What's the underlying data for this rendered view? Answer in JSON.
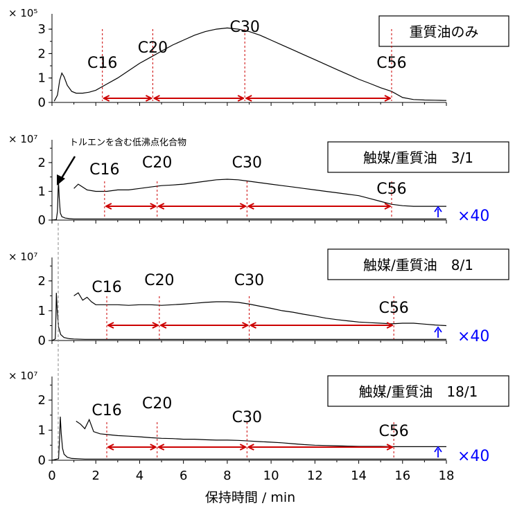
{
  "figure": {
    "xlabel": "保持時間 / min",
    "x_ticks": [
      0,
      2,
      4,
      6,
      8,
      10,
      12,
      14,
      16,
      18
    ],
    "xlim": [
      0,
      18
    ],
    "annotation_arrow_label": "トルエンを含む低沸点化合物",
    "colors": {
      "trace": "#000000",
      "marker": "#cc0000",
      "scale_label": "#0000ff",
      "axis": "#000000"
    },
    "icons": {
      "arrow": "black-arrow-icon",
      "scale": "blue-up-arrow-icon"
    }
  },
  "chart_data": [
    {
      "type": "line",
      "label": "重質油のみ",
      "exponent_label": "× 10⁵",
      "y_ticks": [
        0,
        1,
        2,
        3
      ],
      "ylim": [
        0,
        3.4
      ],
      "scale_label": "",
      "markers": [
        {
          "label": "C16",
          "x": 2.3
        },
        {
          "label": "C20",
          "x": 4.6
        },
        {
          "label": "C30",
          "x": 8.8
        },
        {
          "label": "C56",
          "x": 15.5
        }
      ],
      "series": [
        {
          "x": [
            0.1,
            0.25,
            0.35,
            0.45,
            0.55,
            0.7,
            0.9,
            1.1,
            1.4,
            1.7,
            2.0,
            2.5,
            3.0,
            3.5,
            4.0,
            4.5,
            5.0,
            5.5,
            6.0,
            6.5,
            7.0,
            7.5,
            8.0,
            8.5,
            9.0,
            9.5,
            10,
            10.5,
            11,
            11.5,
            12,
            12.5,
            13,
            13.5,
            14,
            14.5,
            15,
            15.5,
            16,
            16.5,
            17,
            17.5,
            18
          ],
          "y": [
            0.05,
            0.3,
            0.9,
            1.2,
            1.05,
            0.7,
            0.45,
            0.38,
            0.38,
            0.42,
            0.5,
            0.75,
            1.0,
            1.3,
            1.6,
            1.85,
            2.1,
            2.35,
            2.55,
            2.75,
            2.9,
            3.0,
            3.05,
            3.0,
            2.9,
            2.75,
            2.55,
            2.35,
            2.15,
            1.95,
            1.75,
            1.55,
            1.35,
            1.15,
            0.95,
            0.78,
            0.6,
            0.45,
            0.2,
            0.12,
            0.1,
            0.09,
            0.08
          ]
        }
      ]
    },
    {
      "type": "line",
      "label": "触媒/重質油　3/1",
      "exponent_label": "× 10⁷",
      "y_ticks": [
        0,
        1,
        2
      ],
      "ylim": [
        0,
        2.6
      ],
      "scale_label": "×40",
      "markers": [
        {
          "label": "C16",
          "x": 2.4
        },
        {
          "label": "C20",
          "x": 4.8
        },
        {
          "label": "C30",
          "x": 8.9
        },
        {
          "label": "C56",
          "x": 15.5
        }
      ],
      "series": [
        {
          "name": "×1",
          "x": [
            0,
            0.2,
            0.25,
            0.28,
            0.3,
            0.33,
            0.38,
            0.45,
            0.6,
            0.8,
            1.0,
            1.5,
            2,
            4,
            6,
            8,
            10,
            12,
            14,
            16,
            18
          ],
          "y": [
            0,
            0.02,
            0.3,
            1.1,
            1.3,
            0.8,
            0.25,
            0.12,
            0.07,
            0.05,
            0.04,
            0.04,
            0.04,
            0.04,
            0.04,
            0.04,
            0.04,
            0.04,
            0.04,
            0.04,
            0.04
          ]
        },
        {
          "name": "×40",
          "x": [
            1.0,
            1.2,
            1.6,
            2.0,
            2.5,
            3,
            3.5,
            4,
            4.5,
            5,
            5.5,
            6,
            6.5,
            7,
            7.5,
            8,
            8.5,
            9,
            9.5,
            10,
            10.5,
            11,
            11.5,
            12,
            12.5,
            13,
            13.5,
            14,
            14.5,
            15,
            15.5,
            16,
            16.5,
            17,
            17.5,
            18
          ],
          "y": [
            1.1,
            1.25,
            1.05,
            1.0,
            1.0,
            1.05,
            1.05,
            1.1,
            1.15,
            1.2,
            1.22,
            1.25,
            1.3,
            1.35,
            1.4,
            1.42,
            1.4,
            1.35,
            1.3,
            1.25,
            1.2,
            1.15,
            1.1,
            1.05,
            1.0,
            0.95,
            0.9,
            0.85,
            0.75,
            0.65,
            0.55,
            0.5,
            0.48,
            0.48,
            0.48,
            0.48
          ]
        }
      ]
    },
    {
      "type": "line",
      "label": "触媒/重質油　8/1",
      "exponent_label": "× 10⁷",
      "y_ticks": [
        0,
        1,
        2
      ],
      "ylim": [
        0,
        2.6
      ],
      "scale_label": "×40",
      "markers": [
        {
          "label": "C16",
          "x": 2.5
        },
        {
          "label": "C20",
          "x": 4.9
        },
        {
          "label": "C30",
          "x": 9.0
        },
        {
          "label": "C56",
          "x": 15.6
        }
      ],
      "series": [
        {
          "name": "×1",
          "x": [
            0,
            0.15,
            0.18,
            0.2,
            0.24,
            0.3,
            0.4,
            0.55,
            0.8,
            1.0,
            1.5,
            2,
            4,
            6,
            8,
            10,
            12,
            14,
            16,
            18
          ],
          "y": [
            0,
            0.05,
            0.8,
            1.6,
            1.0,
            0.45,
            0.2,
            0.1,
            0.06,
            0.05,
            0.04,
            0.04,
            0.04,
            0.04,
            0.04,
            0.04,
            0.04,
            0.04,
            0.04,
            0.04
          ]
        },
        {
          "name": "×40",
          "x": [
            1.0,
            1.2,
            1.4,
            1.6,
            1.8,
            2.0,
            2.5,
            3,
            3.5,
            4,
            4.5,
            5,
            5.5,
            6,
            6.5,
            7,
            7.5,
            8,
            8.5,
            9,
            9.5,
            10,
            10.5,
            11,
            11.5,
            12,
            12.5,
            13,
            13.5,
            14,
            14.5,
            15,
            15.5,
            16,
            16.5,
            17,
            17.5,
            18
          ],
          "y": [
            1.5,
            1.6,
            1.35,
            1.45,
            1.3,
            1.2,
            1.2,
            1.2,
            1.18,
            1.2,
            1.2,
            1.18,
            1.2,
            1.22,
            1.25,
            1.28,
            1.3,
            1.3,
            1.28,
            1.22,
            1.15,
            1.08,
            1.0,
            0.95,
            0.88,
            0.82,
            0.75,
            0.7,
            0.66,
            0.62,
            0.6,
            0.58,
            0.56,
            0.58,
            0.58,
            0.55,
            0.52,
            0.5
          ]
        }
      ]
    },
    {
      "type": "line",
      "label": "触媒/重質油　18/1",
      "exponent_label": "× 10⁷",
      "y_ticks": [
        0,
        1,
        2
      ],
      "ylim": [
        0,
        2.6
      ],
      "scale_label": "×40",
      "markers": [
        {
          "label": "C16",
          "x": 2.5
        },
        {
          "label": "C20",
          "x": 4.8
        },
        {
          "label": "C30",
          "x": 8.9
        },
        {
          "label": "C56",
          "x": 15.6
        }
      ],
      "series": [
        {
          "name": "×1",
          "x": [
            0,
            0.3,
            0.35,
            0.38,
            0.42,
            0.48,
            0.55,
            0.7,
            0.9,
            1.2,
            1.5,
            2,
            4,
            6,
            8,
            10,
            12,
            14,
            16,
            18
          ],
          "y": [
            0,
            0.05,
            0.8,
            1.45,
            0.9,
            0.4,
            0.2,
            0.1,
            0.06,
            0.05,
            0.04,
            0.04,
            0.04,
            0.04,
            0.04,
            0.04,
            0.04,
            0.04,
            0.04,
            0.04
          ]
        },
        {
          "name": "×40",
          "x": [
            1.1,
            1.3,
            1.5,
            1.7,
            1.9,
            2.2,
            2.6,
            3,
            3.5,
            4,
            4.5,
            5,
            5.5,
            6,
            6.5,
            7,
            7.5,
            8,
            8.5,
            9,
            9.5,
            10,
            10.5,
            11,
            11.5,
            12,
            12.5,
            13,
            13.5,
            14,
            14.5,
            15,
            15.5,
            16,
            16.5,
            17,
            17.5,
            18
          ],
          "y": [
            1.3,
            1.2,
            1.05,
            1.35,
            0.95,
            0.88,
            0.85,
            0.82,
            0.8,
            0.78,
            0.75,
            0.73,
            0.72,
            0.7,
            0.7,
            0.68,
            0.67,
            0.67,
            0.66,
            0.64,
            0.62,
            0.6,
            0.58,
            0.55,
            0.52,
            0.5,
            0.49,
            0.48,
            0.47,
            0.46,
            0.46,
            0.46,
            0.45,
            0.45,
            0.45,
            0.45,
            0.45,
            0.45
          ]
        }
      ]
    }
  ]
}
